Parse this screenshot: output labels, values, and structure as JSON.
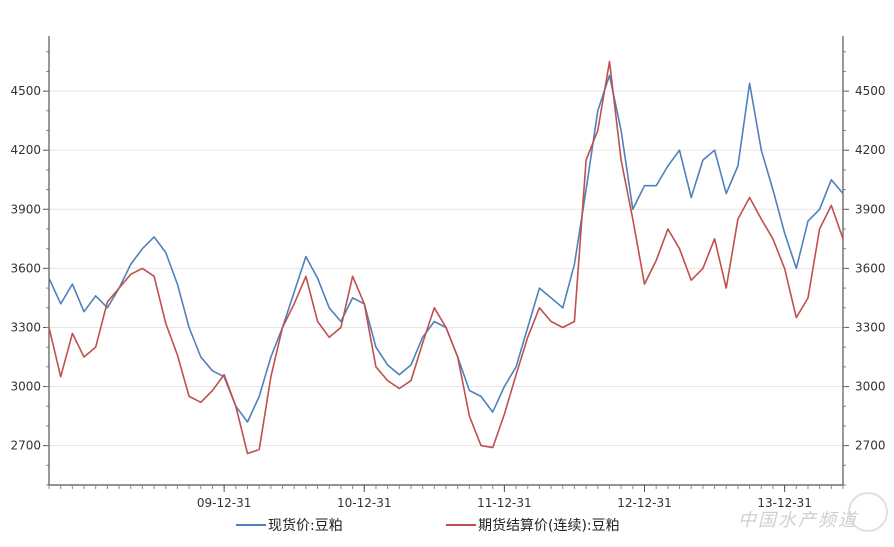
{
  "watermark": "中国水产频道",
  "chart_data": {
    "type": "line",
    "grid": true,
    "legend_position": "bottom",
    "x_tick_labels": [
      "09-12-31",
      "10-12-31",
      "11-12-31",
      "12-12-31",
      "13-12-31"
    ],
    "x_tick_index": [
      15,
      27,
      39,
      51,
      63
    ],
    "yticks": [
      2700,
      3000,
      3300,
      3600,
      3900,
      4200,
      4500
    ],
    "ylim": [
      2500,
      4780
    ],
    "colors": {
      "spot": "#4f81bd",
      "futures": "#c0504d"
    },
    "series": [
      {
        "name": "现货价:豆粕",
        "key": "spot",
        "values": [
          3550,
          3420,
          3520,
          3380,
          3460,
          3400,
          3500,
          3620,
          3700,
          3760,
          3680,
          3520,
          3300,
          3150,
          3080,
          3050,
          2900,
          2820,
          2950,
          3150,
          3300,
          3480,
          3660,
          3550,
          3400,
          3330,
          3450,
          3420,
          3200,
          3110,
          3060,
          3110,
          3250,
          3330,
          3300,
          3150,
          2980,
          2950,
          2870,
          3000,
          3100,
          3300,
          3500,
          3450,
          3400,
          3620,
          4000,
          4400,
          4580,
          4300,
          3900,
          4020,
          4020,
          4120,
          4200,
          3960,
          4150,
          4200,
          3980,
          4120,
          4540,
          4200,
          4000,
          3780,
          3600,
          3840,
          3900,
          4050,
          3980
        ]
      },
      {
        "name": "期货结算价(连续):豆粕",
        "key": "futures",
        "values": [
          3300,
          3050,
          3270,
          3150,
          3200,
          3430,
          3500,
          3570,
          3600,
          3560,
          3320,
          3160,
          2950,
          2920,
          2980,
          3060,
          2900,
          2660,
          2680,
          3050,
          3300,
          3420,
          3560,
          3330,
          3250,
          3300,
          3560,
          3420,
          3100,
          3030,
          2990,
          3030,
          3220,
          3400,
          3300,
          3150,
          2850,
          2700,
          2690,
          2860,
          3060,
          3250,
          3400,
          3330,
          3300,
          3330,
          4150,
          4300,
          4650,
          4150,
          3850,
          3520,
          3640,
          3800,
          3700,
          3540,
          3600,
          3750,
          3500,
          3850,
          3960,
          3850,
          3750,
          3600,
          3350,
          3450,
          3800,
          3920,
          3750
        ]
      }
    ]
  }
}
